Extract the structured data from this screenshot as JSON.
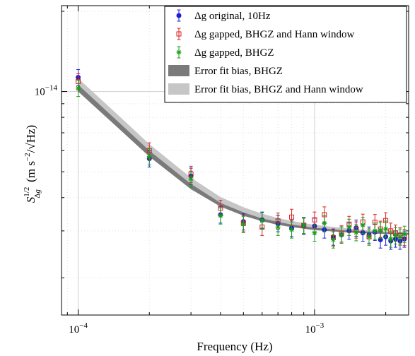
{
  "chart_data": {
    "type": "scatter",
    "title": "",
    "xlabel": "Frequency (Hz)",
    "ylabel": "S^{1/2}_{Δg} (m s^{-2}/√Hz)",
    "x_scale": "log",
    "y_scale": "log",
    "xlim": [
      8.5e-05,
      0.0025
    ],
    "ylim": [
      1.45e-15,
      2.1e-14
    ],
    "grid": true,
    "legend_position": "top-right",
    "x_ticks": [
      {
        "value": 0.0001,
        "base": "10",
        "exp": "−4"
      },
      {
        "value": 0.001,
        "base": "10",
        "exp": "−3"
      }
    ],
    "y_ticks": [
      {
        "value": 1e-14,
        "base": "10",
        "exp": "−14"
      }
    ],
    "series": [
      {
        "name": "Δg original, 10Hz",
        "marker": "dot-errorbar",
        "color": "#1f1fd0",
        "x": [
          0.0001,
          0.0002,
          0.0003,
          0.0004,
          0.0005,
          0.0006,
          0.0007,
          0.0008,
          0.0009,
          0.001,
          0.0011,
          0.0012,
          0.0013,
          0.0014,
          0.0015,
          0.0016,
          0.0017,
          0.0018,
          0.0019,
          0.002,
          0.0021,
          0.0022,
          0.0023,
          0.0024
        ],
        "y": [
          1.13e-14,
          5.6e-15,
          4.82e-15,
          3.45e-15,
          3.25e-15,
          3.3e-15,
          3.2e-15,
          3.07e-15,
          3.13e-15,
          3.13e-15,
          3.03e-15,
          2.85e-15,
          2.9e-15,
          3e-15,
          3.08e-15,
          2.95e-15,
          2.9e-15,
          2.97e-15,
          2.78e-15,
          2.85e-15,
          2.75e-15,
          2.8e-15,
          2.75e-15,
          2.8e-15
        ]
      },
      {
        "name": "Δg gapped, BHGZ and Hann window",
        "marker": "square-errorbar",
        "color": "#dc2222",
        "x": [
          0.0001,
          0.0002,
          0.0003,
          0.0004,
          0.0005,
          0.0006,
          0.0007,
          0.0008,
          0.0009,
          0.001,
          0.0011,
          0.0012,
          0.0013,
          0.0014,
          0.0015,
          0.0016,
          0.0017,
          0.0018,
          0.0019,
          0.002,
          0.0021,
          0.0022,
          0.0023,
          0.0024
        ],
        "y": [
          1.09e-14,
          6e-15,
          4.9e-15,
          3.65e-15,
          3.2e-15,
          3.1e-15,
          3.27e-15,
          3.38e-15,
          3.15e-15,
          3.3e-15,
          3.45e-15,
          2.83e-15,
          2.93e-15,
          3.18e-15,
          3.03e-15,
          3.24e-15,
          2.85e-15,
          3.23e-15,
          3.05e-15,
          3.28e-15,
          3e-15,
          2.95e-15,
          2.88e-15,
          2.84e-15
        ]
      },
      {
        "name": "Δg gapped, BHGZ",
        "marker": "star-errorbar",
        "color": "#16a016",
        "x": [
          0.0001,
          0.0002,
          0.0003,
          0.0004,
          0.0005,
          0.0006,
          0.0007,
          0.0008,
          0.0009,
          0.001,
          0.0011,
          0.0012,
          0.0013,
          0.0014,
          0.0015,
          0.0016,
          0.0017,
          0.0018,
          0.0019,
          0.002,
          0.0021,
          0.0022,
          0.0023,
          0.0024
        ],
        "y": [
          1.03e-14,
          5.7e-15,
          4.7e-15,
          3.42e-15,
          3.18e-15,
          3.28e-15,
          3.1e-15,
          3.03e-15,
          3.15e-15,
          2.95e-15,
          3.2e-15,
          2.78e-15,
          2.9e-15,
          3.1e-15,
          2.96e-15,
          3.15e-15,
          2.85e-15,
          3e-15,
          3.02e-15,
          3.05e-15,
          2.8e-15,
          2.88e-15,
          2.85e-15,
          2.92e-15
        ]
      },
      {
        "name": "Error fit bias, BHGZ",
        "marker": "band",
        "color": "#7a7a7a",
        "x": [
          0.0001,
          0.00015,
          0.0002,
          0.0003,
          0.0004,
          0.0005,
          0.0006,
          0.0007,
          0.0008,
          0.001,
          0.0013,
          0.0016,
          0.002,
          0.0025
        ],
        "y_low": [
          1e-14,
          7.2e-15,
          5.7e-15,
          4.3e-15,
          3.7e-15,
          3.42e-15,
          3.26e-15,
          3.16e-15,
          3.1e-15,
          3.02e-15,
          2.97e-15,
          2.94e-15,
          2.92e-15,
          2.9e-15
        ],
        "y_high": [
          1.06e-14,
          7.6e-15,
          6e-15,
          4.5e-15,
          3.82e-15,
          3.52e-15,
          3.34e-15,
          3.24e-15,
          3.17e-15,
          3.08e-15,
          3.02e-15,
          2.99e-15,
          2.96e-15,
          2.94e-15
        ]
      },
      {
        "name": "Error fit bias, BHGZ and Hann window",
        "marker": "band",
        "color": "#c6c6c6",
        "x": [
          0.0001,
          0.00015,
          0.0002,
          0.0003,
          0.0004,
          0.0005,
          0.0006,
          0.0007,
          0.0008,
          0.001,
          0.0013,
          0.0016,
          0.002,
          0.0025
        ],
        "y_low": [
          1.04e-14,
          7.5e-15,
          5.95e-15,
          4.48e-15,
          3.82e-15,
          3.52e-15,
          3.34e-15,
          3.23e-15,
          3.16e-15,
          3.07e-15,
          3.01e-15,
          2.98e-15,
          2.95e-15,
          2.93e-15
        ],
        "y_high": [
          1.12e-14,
          8.05e-15,
          6.35e-15,
          4.75e-15,
          4.02e-15,
          3.68e-15,
          3.48e-15,
          3.35e-15,
          3.27e-15,
          3.16e-15,
          3.08e-15,
          3.03e-15,
          2.99e-15,
          2.96e-15
        ]
      }
    ]
  }
}
